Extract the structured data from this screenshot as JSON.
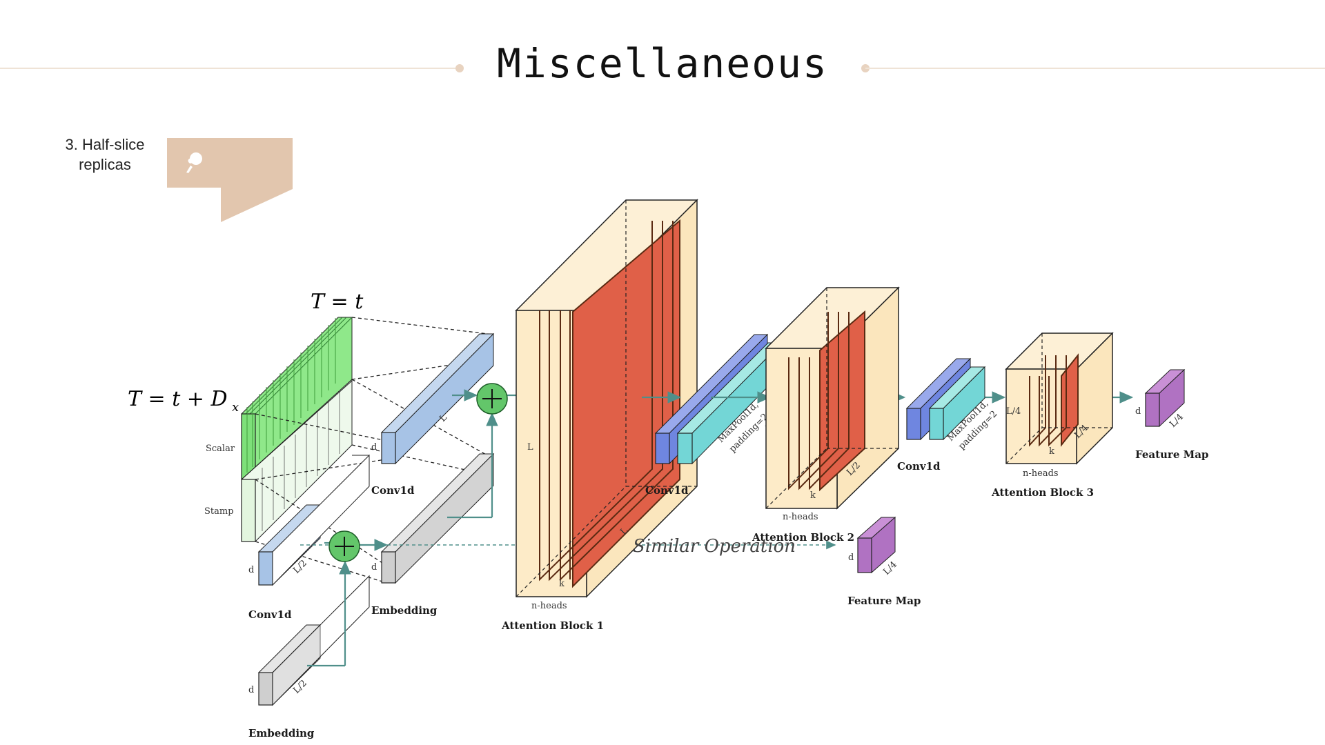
{
  "slide": {
    "title": "Miscellaneous",
    "note": "3. Half-slice replicas",
    "accent": "#e2c6ae"
  },
  "diagram": {
    "time_labels": {
      "t_eq_t": "T = t",
      "t_eq_t_dx": "T = t + D",
      "t_eq_t_dx_sub": "x"
    },
    "side_labels": {
      "scalar": "Scalar",
      "stamp": "Stamp"
    },
    "dims": {
      "d": "d",
      "L": "L",
      "L2": "L/2",
      "L4": "L/4",
      "k": "k",
      "nheads": "n-heads"
    },
    "blocks": {
      "conv1d_top": "Conv1d",
      "conv1d_left": "Conv1d",
      "embedding_mid": "Embedding",
      "embedding_bottom": "Embedding",
      "attention1": "Attention Block 1",
      "conv1d_a": "Conv1d",
      "maxpool_a": "MaxPool1d,",
      "padding_a": "padding=2",
      "attention2": "Attention Block 2",
      "conv1d_b": "Conv1d",
      "maxpool_b": "MaxPool1d,",
      "padding_b": "padding=2",
      "attention3": "Attention Block 3",
      "feature_map_top": "Feature Map",
      "feature_map_bottom": "Feature Map",
      "similar": "Similar Operation"
    },
    "colors": {
      "green": "#7ee07a",
      "light_green": "#d9f5d3",
      "blue": "#a7c3e6",
      "dark_blue": "#6f86e0",
      "cyan": "#73d6d6",
      "gray": "#cfcfcf",
      "cream": "#fdebc8",
      "red": "#e06048",
      "purple": "#b072c2",
      "arrow": "#4f8f8a"
    }
  }
}
